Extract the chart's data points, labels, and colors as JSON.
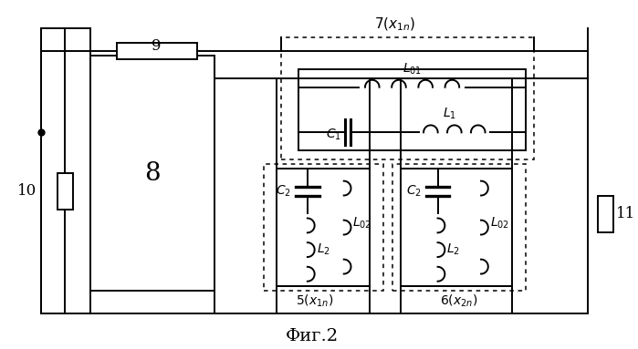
{
  "title": "Фиг.2",
  "bg_color": "#ffffff",
  "line_color": "#000000",
  "fig_width": 6.99,
  "fig_height": 3.83,
  "dpi": 100
}
